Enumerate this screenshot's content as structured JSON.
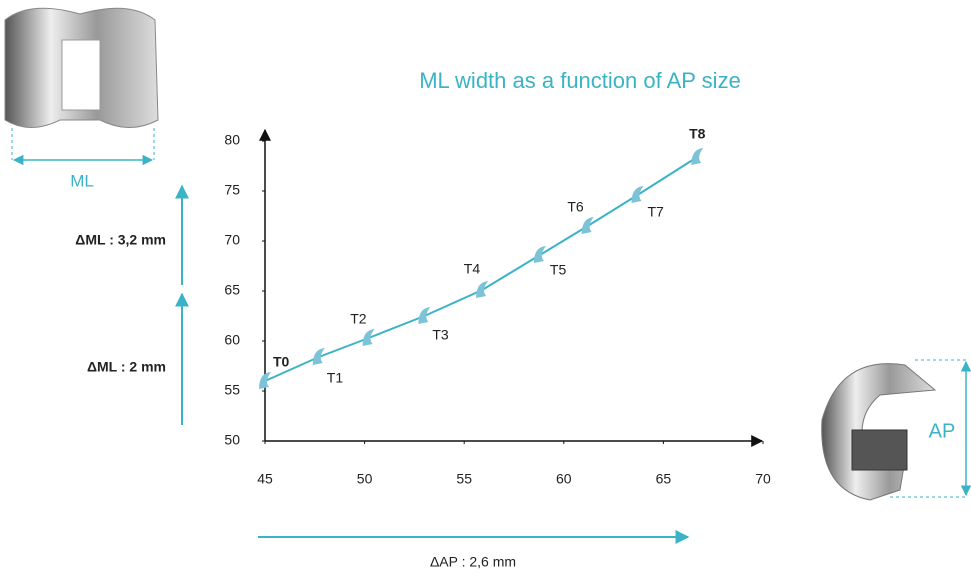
{
  "chart_data": {
    "type": "line",
    "title": "ML width as a function of AP size",
    "x": [
      45,
      47.7,
      50.2,
      53,
      55.9,
      58.8,
      61.2,
      63.7,
      66.7
    ],
    "series": [
      {
        "color": "#3bb3c6",
        "values": [
          56,
          58.4,
          60.3,
          62.5,
          65.1,
          68.6,
          71.5,
          74.6,
          78.4
        ],
        "labels": [
          "T0",
          "T1",
          "T2",
          "T3",
          "T4",
          "T5",
          "T6",
          "T7",
          "T8"
        ]
      }
    ],
    "xlim": [
      45,
      70
    ],
    "xticks": [
      45,
      50,
      55,
      60,
      65,
      70
    ],
    "ylim": [
      50,
      80
    ],
    "yticks": [
      50,
      55,
      60,
      65,
      70,
      75,
      80
    ],
    "annotations": [
      "ΔML : 3,2 mm",
      "ΔML : 2 mm",
      "ΔAP : 2,6 mm",
      "ML",
      "AP"
    ]
  }
}
